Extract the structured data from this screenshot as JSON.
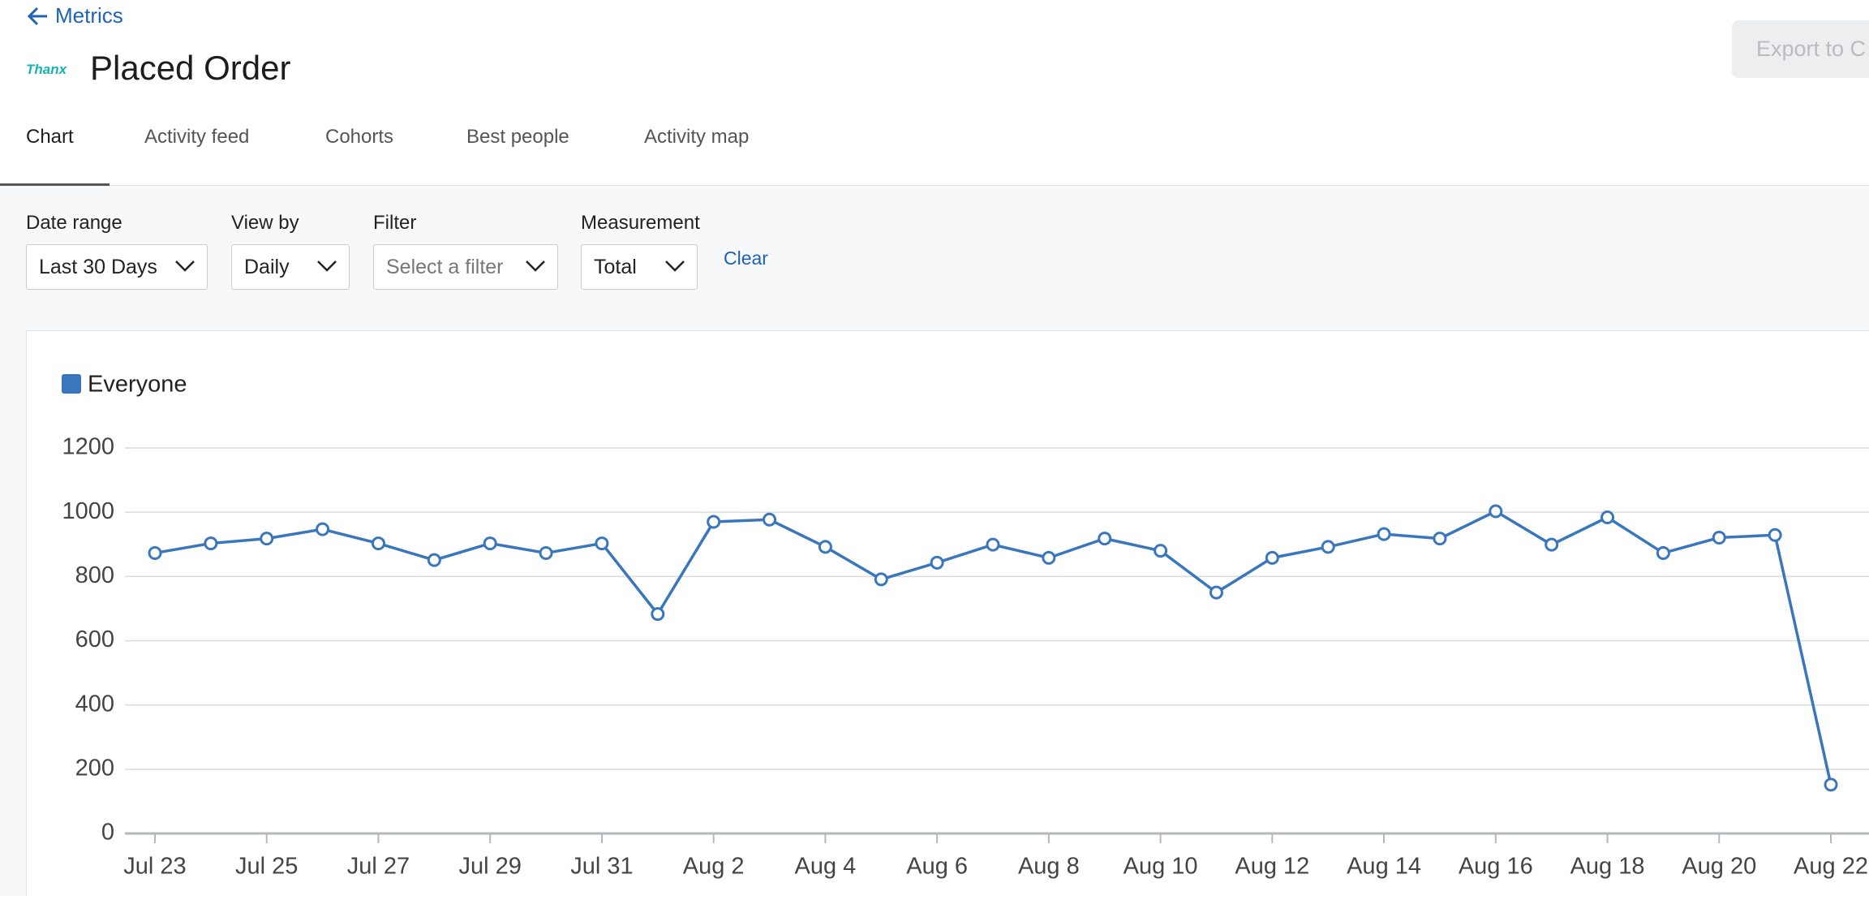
{
  "header": {
    "back_link": "Metrics",
    "logo": "Thanx",
    "title": "Placed Order",
    "export_button": "Export to C"
  },
  "tabs": [
    "Chart",
    "Activity feed",
    "Cohorts",
    "Best people",
    "Activity map"
  ],
  "filters": [
    {
      "label": "Date range",
      "value": "Last 30 Days"
    },
    {
      "label": "View by",
      "value": "Daily"
    },
    {
      "label": "Filter",
      "value": "Select a filter"
    },
    {
      "label": "Measurement",
      "value": "Total"
    }
  ],
  "clear": "Clear",
  "chart_data": {
    "type": "line",
    "categories": [
      "Jul 23",
      null,
      "Jul 25",
      null,
      "Jul 27",
      null,
      "Jul 29",
      null,
      "Jul 31",
      null,
      "Aug 2",
      null,
      "Aug 4",
      null,
      "Aug 6",
      null,
      "Aug 8",
      null,
      "Aug 10",
      null,
      "Aug 12",
      null,
      "Aug 14",
      null,
      "Aug 16",
      null,
      "Aug 18",
      null,
      "Aug 20",
      null,
      "Aug 22"
    ],
    "series": [
      {
        "name": "Everyone",
        "color": "#3a76bc",
        "values": [
          873,
          903,
          918,
          947,
          903,
          851,
          903,
          873,
          903,
          683,
          970,
          977,
          892,
          791,
          843,
          899,
          858,
          918,
          880,
          750,
          858,
          892,
          932,
          918,
          1003,
          899,
          984,
          873,
          921,
          929,
          152
        ]
      }
    ],
    "ylim": [
      0,
      1200
    ],
    "yticks": [
      0,
      200,
      400,
      600,
      800,
      1000,
      1200
    ],
    "grid": true
  }
}
